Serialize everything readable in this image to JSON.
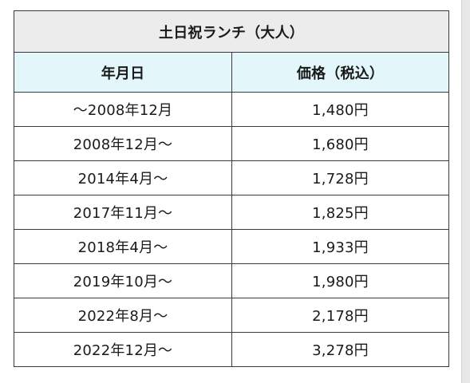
{
  "table": {
    "title": "土日祝ランチ（大人）",
    "headers": [
      "年月日",
      "価格（税込）"
    ],
    "rows": [
      {
        "date": "～2008年12月",
        "price": "1,480円"
      },
      {
        "date": "2008年12月～",
        "price": "1,680円"
      },
      {
        "date": "2014年4月～",
        "price": "1,728円"
      },
      {
        "date": "2017年11月～",
        "price": "1,825円"
      },
      {
        "date": "2018年4月～",
        "price": "1,933円"
      },
      {
        "date": "2019年10月～",
        "price": "1,980円"
      },
      {
        "date": "2022年8月～",
        "price": "2,178円"
      },
      {
        "date": "2022年12月～",
        "price": "3,278円"
      }
    ]
  }
}
